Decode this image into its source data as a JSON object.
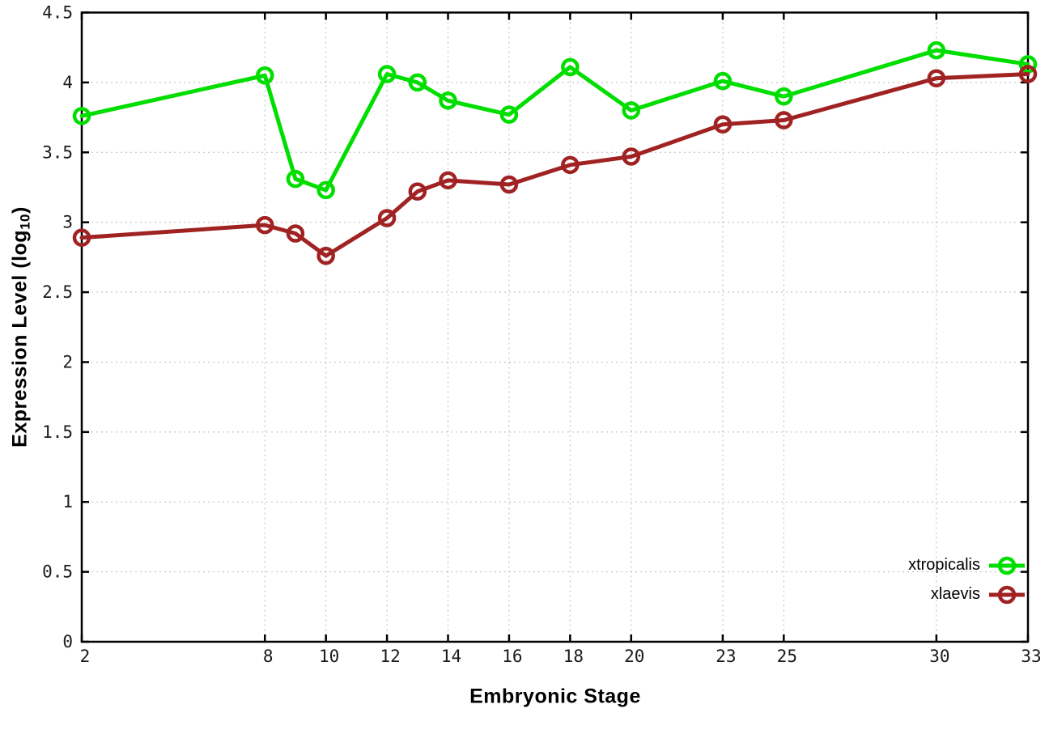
{
  "chart_data": {
    "type": "line",
    "title": "",
    "xlabel": "Embryonic Stage",
    "ylabel": "Expression Level (log10)",
    "ylabel_parts": {
      "pre": "Expression Level (log",
      "sub": "10",
      "post": ")"
    },
    "xlim": [
      2,
      33
    ],
    "ylim": [
      0,
      4.5
    ],
    "x_ticks": [
      2,
      8,
      10,
      12,
      14,
      16,
      18,
      20,
      23,
      25,
      30,
      33
    ],
    "y_ticks": [
      0,
      0.5,
      1,
      1.5,
      2,
      2.5,
      3,
      3.5,
      4,
      4.5
    ],
    "y_tick_labels": [
      "0",
      "0.5",
      "1",
      "1.5",
      "2",
      "2.5",
      "3",
      "3.5",
      "4",
      "4.5"
    ],
    "grid": true,
    "grid_style": "dotted",
    "legend_position": "bottom-right",
    "marker": "open-circle",
    "x": [
      2,
      8,
      9,
      10,
      12,
      13,
      14,
      16,
      18,
      20,
      23,
      25,
      30,
      33
    ],
    "series": [
      {
        "name": "xtropicalis",
        "color": "#00de00",
        "values": [
          3.76,
          4.05,
          3.31,
          3.23,
          4.06,
          4.0,
          3.87,
          3.77,
          4.11,
          3.8,
          4.01,
          3.9,
          4.23,
          4.13
        ]
      },
      {
        "name": "xlaevis",
        "color": "#a02222",
        "values": [
          2.89,
          2.98,
          2.92,
          2.76,
          3.03,
          3.22,
          3.3,
          3.27,
          3.41,
          3.47,
          3.7,
          3.73,
          4.03,
          4.06
        ]
      }
    ],
    "axis_color": "#000000",
    "grid_color": "#b9b9b9",
    "tick_label_color": "#1a1a1a"
  }
}
